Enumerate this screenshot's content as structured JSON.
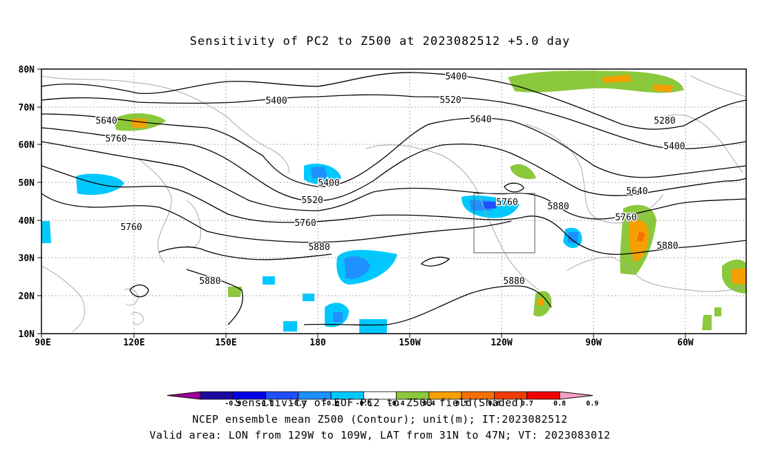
{
  "title": "Sensitivity of PC2 to Z500 at 2023082512 +5.0 day",
  "footer": {
    "line1": "Sensitivity of EOF PC2 to Z500 field(Shaded)",
    "line2": "NCEP ensemble mean Z500 (Contour); unit(m); IT:2023082512",
    "line3": "Valid area: LON from 129W to 109W, LAT from 31N to 47N; VT: 2023083012"
  },
  "axes": {
    "lat_labels": [
      "80N",
      "70N",
      "60N",
      "50N",
      "40N",
      "30N",
      "20N",
      "10N"
    ],
    "lon_labels": [
      "90E",
      "120E",
      "150E",
      "180",
      "150W",
      "120W",
      "90W",
      "60W"
    ]
  },
  "contour_labels": [
    "5400",
    "5400",
    "5520",
    "5640",
    "5760",
    "5280",
    "5400",
    "5400",
    "5520",
    "5640",
    "5760",
    "5880",
    "5760",
    "5640",
    "5760",
    "5880",
    "5760",
    "5880",
    "5880",
    "5880"
  ],
  "colorbar": {
    "levels": [
      "-0.9",
      "-0.8",
      "-0.7",
      "-0.6",
      "-0.5",
      "-0.4",
      "0.4",
      "0.5",
      "0.6",
      "0.7",
      "0.8",
      "0.9"
    ],
    "colors": [
      "#a0009a",
      "#1a0aa0",
      "#0000e6",
      "#1e50ff",
      "#1e90ff",
      "#00c8ff",
      "#ffffff",
      "#8cc83c",
      "#f5a000",
      "#f57000",
      "#f03c00",
      "#f00000",
      "#f5a0c8"
    ]
  },
  "colors": {
    "contour": "#000000",
    "coast": "#a8a8a8",
    "grid": "#8c8c8c",
    "neg_light": "#00c8ff",
    "neg_mid": "#1e90ff",
    "neg_dark": "#1e50ff",
    "pos_light": "#8cc83c",
    "pos_mid": "#f5a000",
    "pos_dark": "#f57000"
  }
}
